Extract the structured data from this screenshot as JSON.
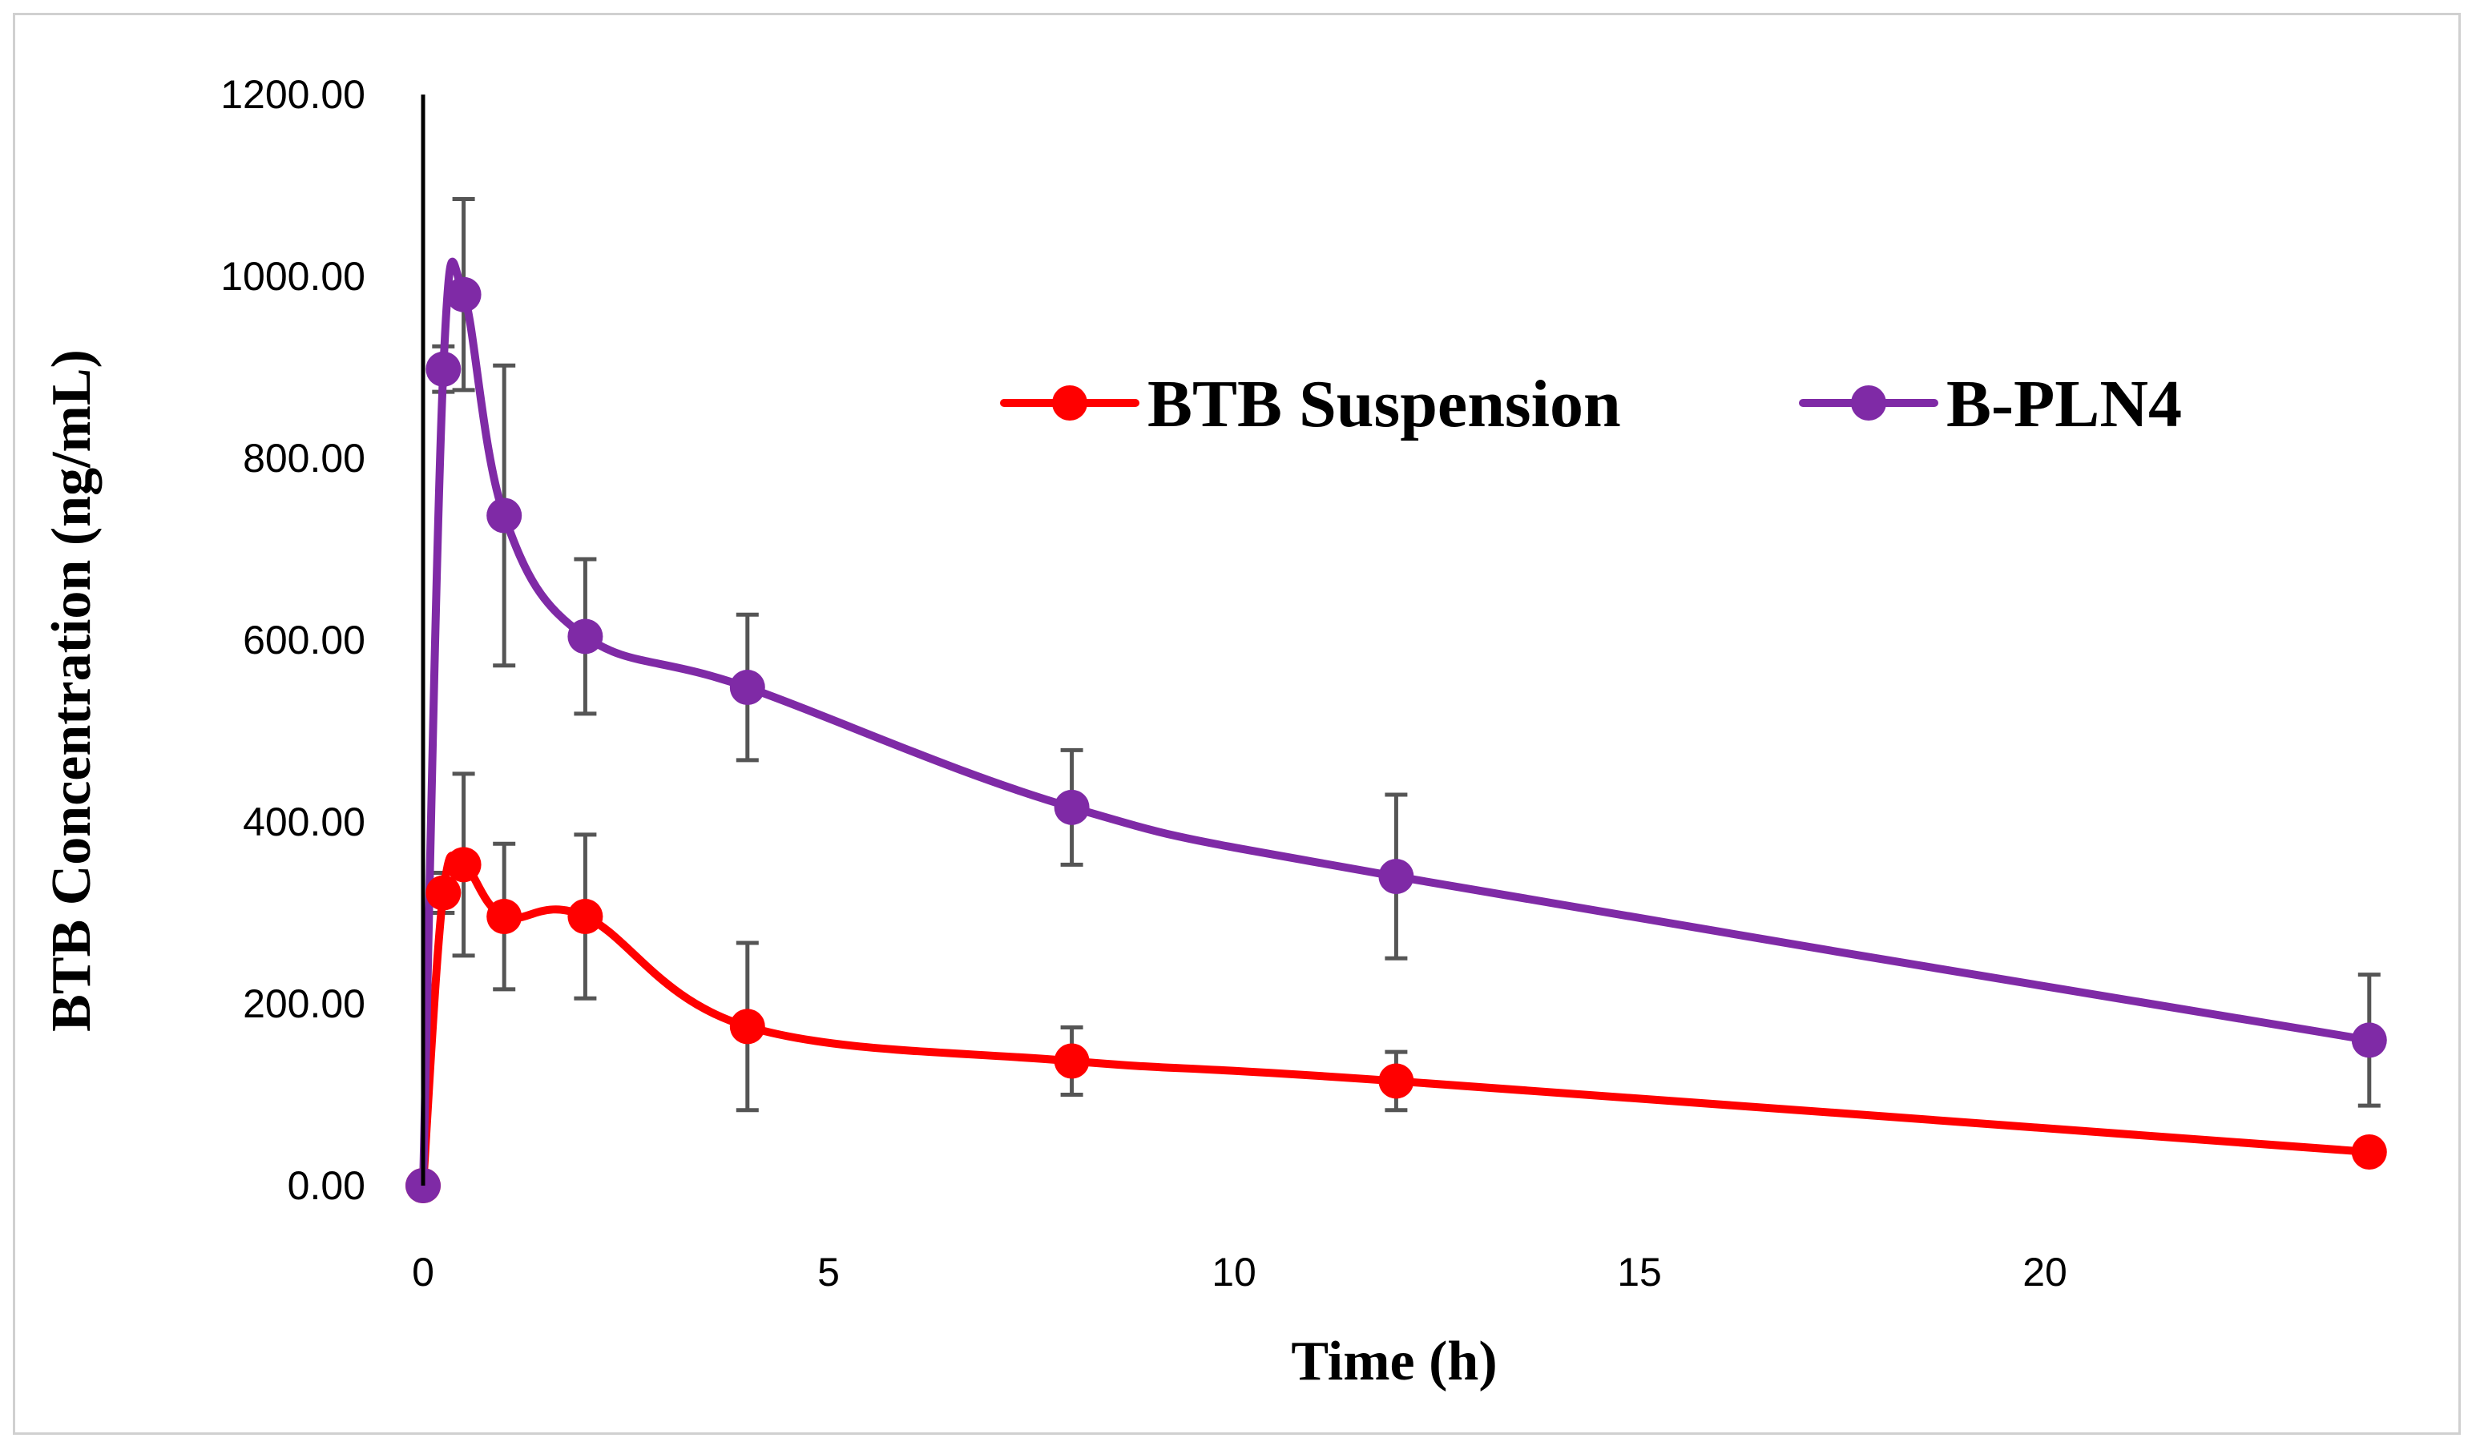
{
  "chart_data": {
    "type": "line",
    "title": "",
    "xlabel": "Time (h)",
    "ylabel": "BTB Concentration (ng/mL)",
    "xlim": [
      0,
      24
    ],
    "ylim": [
      0,
      1200
    ],
    "xticks": [
      0,
      5,
      10,
      15,
      20
    ],
    "xtick_labels": [
      "0",
      "5",
      "10",
      "15",
      "20"
    ],
    "yticks": [
      0,
      200,
      400,
      600,
      800,
      1000,
      1200
    ],
    "ytick_labels": [
      "0.00",
      "200.00",
      "400.00",
      "600.00",
      "800.00",
      "1000.00",
      "1200.00"
    ],
    "grid": false,
    "legend_position": "top-right",
    "series": [
      {
        "name": "BTB Suspension",
        "color": "#ff0000",
        "x": [
          0,
          0.25,
          0.5,
          1,
          2,
          4,
          8,
          12,
          24
        ],
        "y": [
          0,
          322,
          353,
          296,
          296,
          175,
          137,
          115,
          37
        ],
        "error": [
          0,
          22,
          100,
          80,
          90,
          92,
          37,
          32,
          0
        ]
      },
      {
        "name": "B-PLN4",
        "color": "#7f2aa6",
        "x": [
          0,
          0.25,
          0.5,
          1,
          2,
          4,
          8,
          12,
          24
        ],
        "y": [
          0,
          898,
          980,
          737,
          604,
          548,
          416,
          340,
          160
        ],
        "error": [
          0,
          25,
          105,
          165,
          85,
          80,
          63,
          90,
          72
        ]
      }
    ]
  }
}
